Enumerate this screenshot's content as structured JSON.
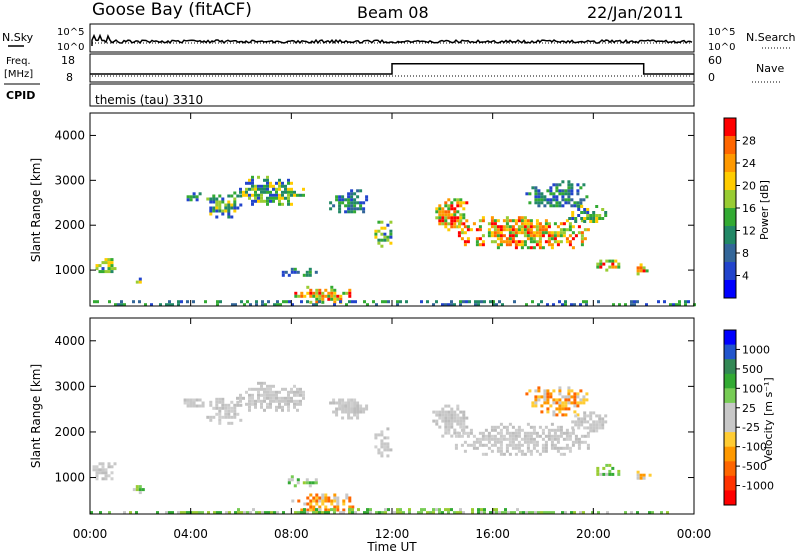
{
  "header": {
    "station": "Goose Bay (fitACF)",
    "beam": "Beam 08",
    "date": "22/Jan/2011"
  },
  "noise_panel": {
    "left_label": "N.Sky",
    "right_label": "N.Search",
    "left_ticks": [
      "10^5",
      "10^0"
    ],
    "right_ticks": [
      "10^5",
      "10^0"
    ]
  },
  "freq_panel": {
    "left_label_1": "Freq.",
    "left_label_2": "[MHz]",
    "left_ticks": [
      "18",
      "8"
    ],
    "right_label": "Nave",
    "right_ticks": [
      "60",
      "0"
    ]
  },
  "cpid_panel": {
    "label": "CPID",
    "text": "themis (tau) 3310"
  },
  "power_colorbar": {
    "title": "Power [dB]",
    "ticks": [
      "28",
      "24",
      "20",
      "16",
      "12",
      "8",
      "4"
    ],
    "colors": [
      "#ff0000",
      "#ff6600",
      "#ff9900",
      "#ffcc00",
      "#99cc33",
      "#33aa33",
      "#228866",
      "#336699",
      "#2244cc",
      "#0000ff"
    ]
  },
  "velocity_colorbar": {
    "title": "Velocity [m s⁻¹]",
    "ticks": [
      "1000",
      "500",
      "100",
      "25",
      "-25",
      "-100",
      "-500",
      "-1000"
    ],
    "colors": [
      "#0000ff",
      "#2255cc",
      "#338855",
      "#33aa33",
      "#77cc55",
      "#c8c8c8",
      "#c8c8c8",
      "#ffcc33",
      "#ff9900",
      "#ff6600",
      "#ff3300",
      "#ff0000"
    ]
  },
  "x_axis": {
    "title": "Time UT",
    "ticks": [
      "00:00",
      "04:00",
      "08:00",
      "12:00",
      "16:00",
      "20:00",
      "00:00"
    ]
  },
  "chart_data": [
    {
      "type": "heatmap",
      "panel": "power",
      "ylabel": "Slant Range [km]",
      "y_ticks": [
        1000,
        2000,
        3000,
        4000
      ],
      "ylim": [
        200,
        4500
      ],
      "xlim": [
        0,
        24
      ],
      "blobs": [
        {
          "t0": 0.1,
          "t1": 1.0,
          "r0": 950,
          "r1": 1400,
          "level": "mid"
        },
        {
          "t0": 1.7,
          "t1": 2.1,
          "r0": 700,
          "r1": 900,
          "level": "mid"
        },
        {
          "t0": 3.6,
          "t1": 4.5,
          "r0": 2550,
          "r1": 2800,
          "level": "low"
        },
        {
          "t0": 4.5,
          "t1": 6.0,
          "r0": 2200,
          "r1": 2750,
          "level": "mid"
        },
        {
          "t0": 5.8,
          "t1": 8.5,
          "r0": 2450,
          "r1": 3100,
          "level": "mid"
        },
        {
          "t0": 9.5,
          "t1": 11.0,
          "r0": 2300,
          "r1": 2800,
          "level": "low"
        },
        {
          "t0": 11.3,
          "t1": 12.0,
          "r0": 1500,
          "r1": 2100,
          "level": "mid"
        },
        {
          "t0": 7.5,
          "t1": 9.0,
          "r0": 850,
          "r1": 1050,
          "level": "low"
        },
        {
          "t0": 8.0,
          "t1": 10.5,
          "r0": 300,
          "r1": 650,
          "level": "high"
        },
        {
          "t0": 13.6,
          "t1": 15.0,
          "r0": 1900,
          "r1": 2600,
          "level": "high"
        },
        {
          "t0": 14.5,
          "t1": 19.8,
          "r0": 1500,
          "r1": 2200,
          "level": "high"
        },
        {
          "t0": 17.3,
          "t1": 19.8,
          "r0": 2400,
          "r1": 3000,
          "level": "low"
        },
        {
          "t0": 19.0,
          "t1": 20.5,
          "r0": 2050,
          "r1": 2450,
          "level": "mid"
        },
        {
          "t0": 20.0,
          "t1": 21.0,
          "r0": 1000,
          "r1": 1300,
          "level": "high"
        },
        {
          "t0": 21.6,
          "t1": 22.2,
          "r0": 900,
          "r1": 1150,
          "level": "high"
        },
        {
          "t0": 0.0,
          "t1": 24.0,
          "r0": 220,
          "r1": 330,
          "level": "low"
        }
      ]
    },
    {
      "type": "heatmap",
      "panel": "velocity",
      "ylabel": "Slant Range [km]",
      "y_ticks": [
        1000,
        2000,
        3000,
        4000
      ],
      "ylim": [
        200,
        4500
      ],
      "xlim": [
        0,
        24
      ],
      "blobs": [
        {
          "t0": 0.1,
          "t1": 1.0,
          "r0": 950,
          "r1": 1400,
          "level": "gray"
        },
        {
          "t0": 1.7,
          "t1": 2.1,
          "r0": 700,
          "r1": 900,
          "level": "green"
        },
        {
          "t0": 3.6,
          "t1": 4.5,
          "r0": 2550,
          "r1": 2800,
          "level": "gray"
        },
        {
          "t0": 4.5,
          "t1": 6.0,
          "r0": 2200,
          "r1": 2750,
          "level": "gray"
        },
        {
          "t0": 5.8,
          "t1": 8.5,
          "r0": 2450,
          "r1": 3100,
          "level": "gray"
        },
        {
          "t0": 9.5,
          "t1": 11.0,
          "r0": 2300,
          "r1": 2800,
          "level": "gray"
        },
        {
          "t0": 11.3,
          "t1": 12.0,
          "r0": 1500,
          "r1": 2100,
          "level": "gray"
        },
        {
          "t0": 7.5,
          "t1": 9.0,
          "r0": 850,
          "r1": 1050,
          "level": "green"
        },
        {
          "t0": 8.0,
          "t1": 10.5,
          "r0": 300,
          "r1": 650,
          "level": "orange"
        },
        {
          "t0": 13.6,
          "t1": 15.0,
          "r0": 1900,
          "r1": 2600,
          "level": "gray"
        },
        {
          "t0": 14.5,
          "t1": 19.8,
          "r0": 1500,
          "r1": 2200,
          "level": "gray"
        },
        {
          "t0": 17.3,
          "t1": 19.8,
          "r0": 2400,
          "r1": 3000,
          "level": "orange"
        },
        {
          "t0": 19.0,
          "t1": 20.5,
          "r0": 2050,
          "r1": 2450,
          "level": "gray"
        },
        {
          "t0": 20.0,
          "t1": 21.0,
          "r0": 1000,
          "r1": 1300,
          "level": "green"
        },
        {
          "t0": 21.6,
          "t1": 22.2,
          "r0": 900,
          "r1": 1150,
          "level": "orange"
        },
        {
          "t0": 0.0,
          "t1": 24.0,
          "r0": 220,
          "r1": 330,
          "level": "green"
        }
      ]
    },
    {
      "type": "line",
      "panel": "frequency",
      "series": [
        {
          "x": [
            0,
            12,
            12,
            22,
            22,
            24
          ],
          "values": [
            10.5,
            10.5,
            14.8,
            14.8,
            10.5,
            10.5
          ]
        }
      ],
      "ylim": [
        8,
        18
      ],
      "xlim": [
        0,
        24
      ]
    }
  ]
}
